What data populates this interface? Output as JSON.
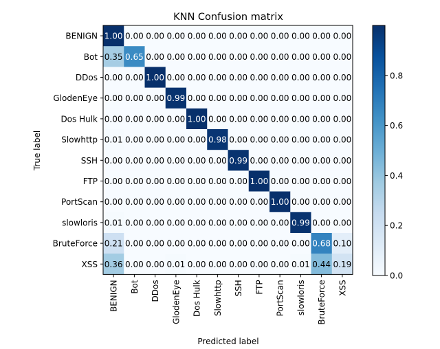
{
  "chart_data": {
    "type": "heatmap",
    "title": "KNN Confusion matrix",
    "xlabel": "Predicted label",
    "ylabel": "True label",
    "x_categories": [
      "BENIGN",
      "Bot",
      "DDos",
      "GlodenEye",
      "Dos Hulk",
      "Slowhttp",
      "SSH",
      "FTP",
      "PortScan",
      "slowloris",
      "BruteForce",
      "XSS"
    ],
    "y_categories": [
      "BENIGN",
      "Bot",
      "DDos",
      "GlodenEye",
      "Dos Hulk",
      "Slowhttp",
      "SSH",
      "FTP",
      "PortScan",
      "slowloris",
      "BruteForce",
      "XSS"
    ],
    "values": [
      [
        1.0,
        0.0,
        0.0,
        0.0,
        0.0,
        0.0,
        0.0,
        0.0,
        0.0,
        0.0,
        0.0,
        0.0
      ],
      [
        0.35,
        0.65,
        0.0,
        0.0,
        0.0,
        0.0,
        0.0,
        0.0,
        0.0,
        0.0,
        0.0,
        0.0
      ],
      [
        0.0,
        0.0,
        1.0,
        0.0,
        0.0,
        0.0,
        0.0,
        0.0,
        0.0,
        0.0,
        0.0,
        0.0
      ],
      [
        0.0,
        0.0,
        0.0,
        0.99,
        0.0,
        0.0,
        0.0,
        0.0,
        0.0,
        0.0,
        0.0,
        0.0
      ],
      [
        0.0,
        0.0,
        0.0,
        0.0,
        1.0,
        0.0,
        0.0,
        0.0,
        0.0,
        0.0,
        0.0,
        0.0
      ],
      [
        0.01,
        0.0,
        0.0,
        0.0,
        0.0,
        0.98,
        0.0,
        0.0,
        0.0,
        0.0,
        0.0,
        0.0
      ],
      [
        0.0,
        0.0,
        0.0,
        0.0,
        0.0,
        0.0,
        0.99,
        0.0,
        0.0,
        0.0,
        0.0,
        0.0
      ],
      [
        0.0,
        0.0,
        0.0,
        0.0,
        0.0,
        0.0,
        0.0,
        1.0,
        0.0,
        0.0,
        0.0,
        0.0
      ],
      [
        0.0,
        0.0,
        0.0,
        0.0,
        0.0,
        0.0,
        0.0,
        0.0,
        1.0,
        0.0,
        0.0,
        0.0
      ],
      [
        0.01,
        0.0,
        0.0,
        0.0,
        0.0,
        0.0,
        0.0,
        0.0,
        0.0,
        0.99,
        0.0,
        0.0
      ],
      [
        0.21,
        0.0,
        0.0,
        0.0,
        0.0,
        0.0,
        0.0,
        0.0,
        0.0,
        0.0,
        0.68,
        0.1
      ],
      [
        0.36,
        0.0,
        0.0,
        0.01,
        0.0,
        0.0,
        0.0,
        0.0,
        0.0,
        0.01,
        0.44,
        0.19
      ]
    ],
    "value_format": "0.00",
    "colormap": "Blues",
    "colorbar": {
      "range": [
        0,
        1
      ],
      "ticks": [
        "0.0",
        "0.2",
        "0.4",
        "0.6",
        "0.8"
      ]
    },
    "text_colors": {
      "dark_cell": "#ffffff",
      "light_cell": "#000000"
    },
    "grid": false
  }
}
